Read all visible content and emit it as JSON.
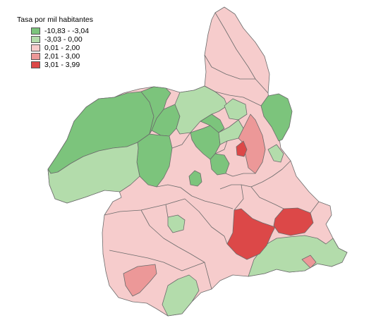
{
  "legend": {
    "title": "Tasa por mil habitantes",
    "classes": [
      {
        "label": "-10,83 - -3,04",
        "color": "#7cc47c"
      },
      {
        "label": "-3,03 - 0,00",
        "color": "#b3dcab"
      },
      {
        "label": "0,01 - 2,00",
        "color": "#f6cccc"
      },
      {
        "label": "2,01 - 3,00",
        "color": "#ec9898"
      },
      {
        "label": "3,01 - 3,99",
        "color": "#dc4848"
      }
    ]
  }
}
